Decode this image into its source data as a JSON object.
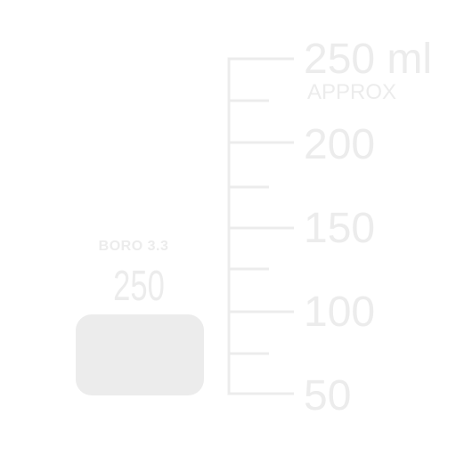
{
  "label": {
    "brand": "BORO 3.3",
    "capacity": "250 ml"
  },
  "scale": {
    "major": [
      {
        "text": "250 ml",
        "value": 250
      },
      {
        "text": "200",
        "value": 200
      },
      {
        "text": "150",
        "value": 150
      },
      {
        "text": "100",
        "value": 100
      },
      {
        "text": "50",
        "value": 50
      }
    ],
    "minor_values": [
      225,
      175,
      125,
      75
    ],
    "approx": "APPROX"
  },
  "colors": {
    "marking": "#ececec",
    "background": "#ffffff"
  }
}
